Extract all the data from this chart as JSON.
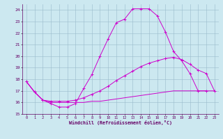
{
  "xlabel": "Windchill (Refroidissement éolien,°C)",
  "background_color": "#cce8f0",
  "grid_color": "#99bbcc",
  "line_color": "#cc00cc",
  "xlim": [
    -0.5,
    23.5
  ],
  "ylim": [
    15,
    24.5
  ],
  "xticks": [
    0,
    1,
    2,
    3,
    4,
    5,
    6,
    7,
    8,
    9,
    10,
    11,
    12,
    13,
    14,
    15,
    16,
    17,
    18,
    19,
    20,
    21,
    22,
    23
  ],
  "yticks": [
    15,
    16,
    17,
    18,
    19,
    20,
    21,
    22,
    23,
    24
  ],
  "line1_x": [
    0,
    1,
    2,
    3,
    4,
    5,
    6,
    7,
    8,
    9,
    10,
    11,
    12,
    13,
    14,
    15,
    16,
    17,
    18,
    19,
    20,
    21,
    22
  ],
  "line1_y": [
    17.8,
    16.9,
    16.2,
    15.9,
    15.6,
    15.6,
    15.9,
    17.2,
    18.4,
    20.0,
    21.5,
    22.9,
    23.2,
    24.1,
    24.1,
    24.1,
    23.5,
    22.1,
    20.4,
    19.6,
    18.5,
    17.0,
    17.0
  ],
  "line2_x": [
    0,
    1,
    2,
    3,
    4,
    5,
    6,
    7,
    8,
    9,
    10,
    11,
    12,
    13,
    14,
    15,
    16,
    17,
    18,
    19,
    20,
    21,
    22,
    23
  ],
  "line2_y": [
    17.8,
    16.9,
    16.2,
    16.1,
    16.1,
    16.1,
    16.2,
    16.4,
    16.7,
    17.0,
    17.4,
    17.9,
    18.3,
    18.7,
    19.1,
    19.4,
    19.6,
    19.8,
    19.9,
    19.7,
    19.3,
    18.8,
    18.5,
    17.0
  ],
  "line3_x": [
    0,
    1,
    2,
    3,
    4,
    5,
    6,
    7,
    8,
    9,
    10,
    11,
    12,
    13,
    14,
    15,
    16,
    17,
    18,
    19,
    20,
    21,
    22,
    23
  ],
  "line3_y": [
    17.8,
    16.9,
    16.2,
    16.0,
    16.0,
    16.0,
    16.0,
    16.0,
    16.1,
    16.1,
    16.2,
    16.3,
    16.4,
    16.5,
    16.6,
    16.7,
    16.8,
    16.9,
    17.0,
    17.0,
    17.0,
    17.0,
    17.0,
    17.0
  ]
}
